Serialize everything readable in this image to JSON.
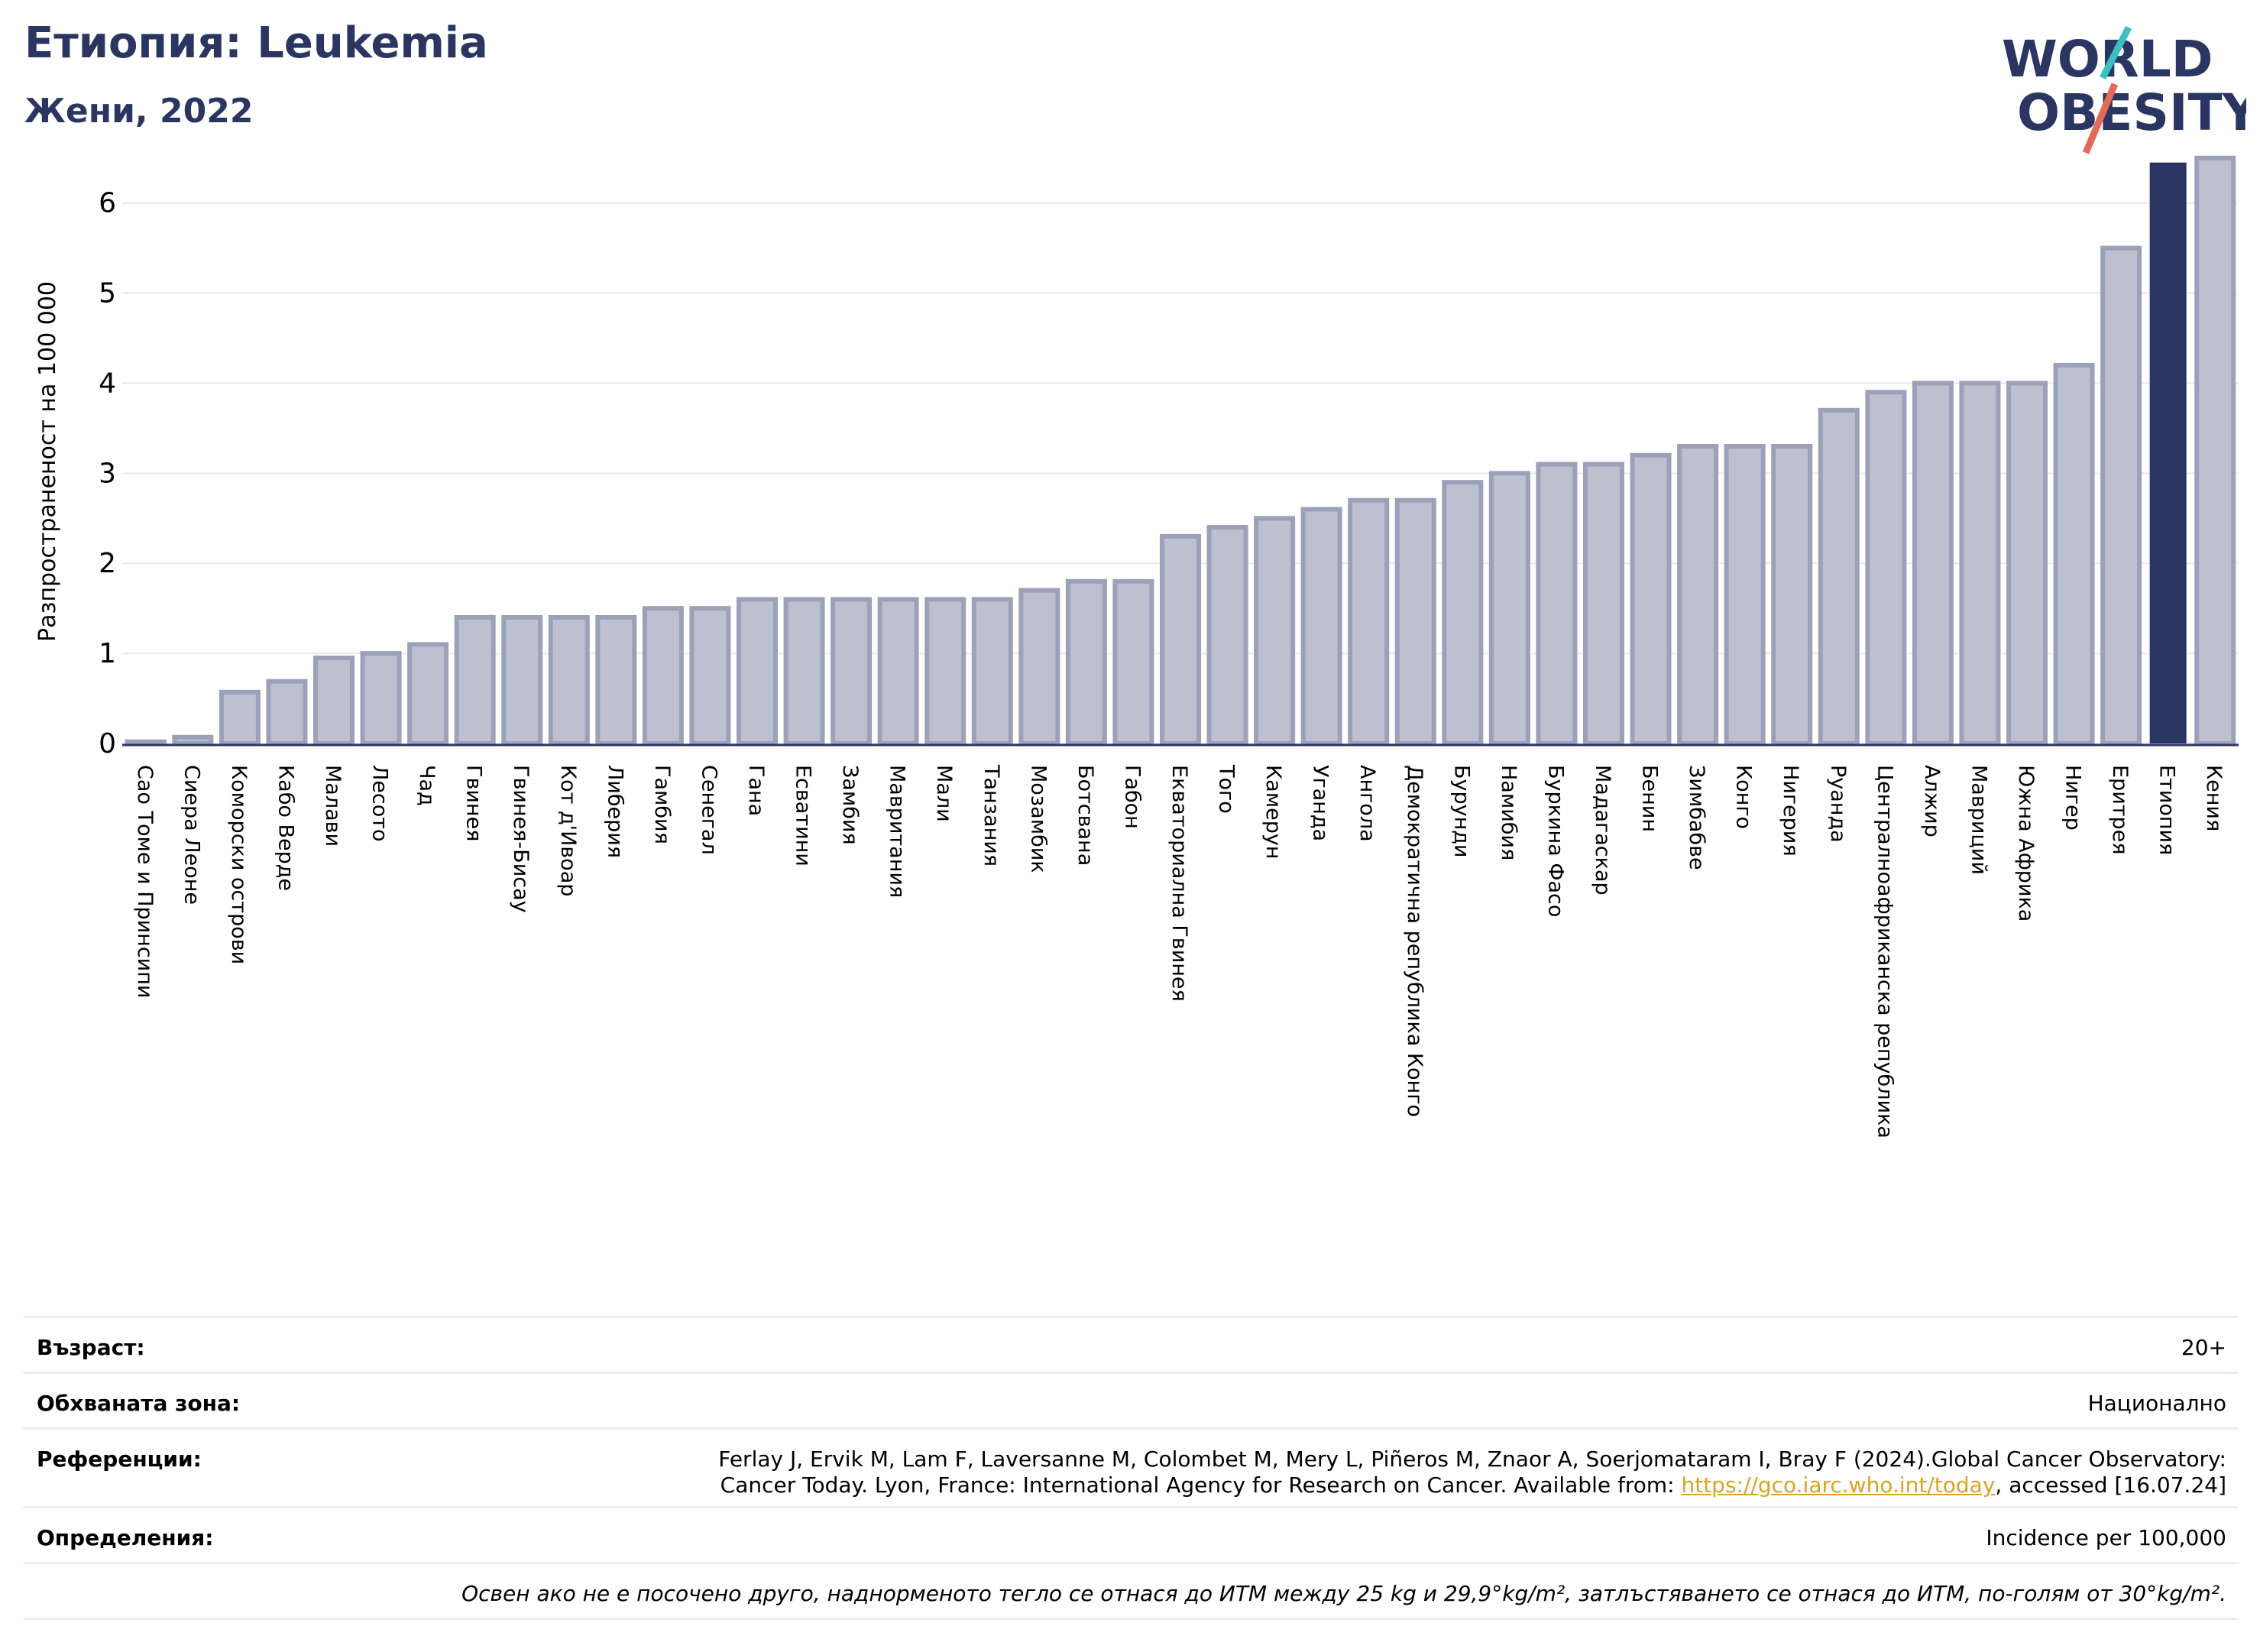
{
  "header": {
    "title": "Етиопия: Leukemia",
    "subtitle": "Жени, 2022"
  },
  "logo": {
    "line1": "WORLD",
    "line2": "OBESITY"
  },
  "chart_data": {
    "type": "bar",
    "title": "",
    "xlabel": "",
    "ylabel": "Разпространеност  на 100 000",
    "ylim": [
      0,
      6.6
    ],
    "yticks": [
      0,
      1,
      2,
      3,
      4,
      5,
      6
    ],
    "grid": true,
    "highlight": "Етиопия",
    "highlight_color": "#2a3561",
    "bar_color": "#bcc0cf",
    "bar_edge_color": "#9ba1b8",
    "categories": [
      "Сао Томе и Принсипи",
      "Сиера Леоне",
      "Коморски острови",
      "Кабо Верде",
      "Малави",
      "Лесото",
      "Чад",
      "Гвинея",
      "Гвинея-Бисау",
      "Кот д'Ивоар",
      "Либерия",
      "Гамбия",
      "Сенегал",
      "Гана",
      "Есватини",
      "Замбия",
      "Мавритания",
      "Мали",
      "Танзания",
      "Мозамбик",
      "Ботсвана",
      "Габон",
      "Екваториална Гвинея",
      "Того",
      "Камерун",
      "Уганда",
      "Ангола",
      "Демократична република Конго",
      "Бурунди",
      "Намибия",
      "Буркина Фасо",
      "Мадагаскар",
      "Бенин",
      "Зимбабве",
      "Конго",
      "Нигерия",
      "Руанда",
      "Централноафриканска република",
      "Алжир",
      "Мавриций",
      "Южна Африка",
      "Нигер",
      "Еритрея",
      "Етиопия",
      "Кения"
    ],
    "values": [
      0.02,
      0.07,
      0.57,
      0.69,
      0.95,
      1.0,
      1.1,
      1.4,
      1.4,
      1.4,
      1.4,
      1.5,
      1.5,
      1.6,
      1.6,
      1.6,
      1.6,
      1.6,
      1.6,
      1.7,
      1.8,
      1.8,
      2.3,
      2.4,
      2.5,
      2.6,
      2.7,
      2.7,
      2.9,
      3.0,
      3.1,
      3.1,
      3.2,
      3.3,
      3.3,
      3.3,
      3.7,
      3.9,
      4.0,
      4.0,
      4.0,
      4.2,
      5.5,
      6.45,
      6.5
    ]
  },
  "info": {
    "age_label": "Възраст:",
    "age_value": "20+",
    "coverage_label": "Обхваната зона:",
    "coverage_value": "Национално",
    "references_label": "Референции:",
    "references_line1": "Ferlay J, Ervik M, Lam F, Laversanne M, Colombet M, Mery L, Piñeros M, Znaor A, Soerjomataram I, Bray F (2024).Global Cancer Observatory:",
    "references_line2_pre": "Cancer Today. Lyon, France: International Agency for Research on Cancer. Available from: ",
    "references_link": "https://gco.iarc.who.int/today",
    "references_line2_post": ", accessed [16.07.24]",
    "definitions_label": "Определения:",
    "definitions_value": "Incidence per 100,000",
    "note": "Освен ако не е посочено друго, наднорменото тегло се отнася до ИТМ между 25 kg и 29,9°kg/m², затлъстяването се отнася до ИТМ, по-голям от 30°kg/m²."
  }
}
